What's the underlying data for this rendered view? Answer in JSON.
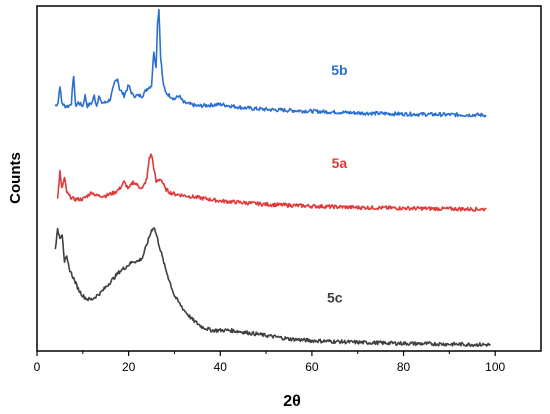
{
  "chart_data": {
    "type": "line",
    "xlabel": "2θ",
    "ylabel": "Counts",
    "xlim": [
      0,
      110
    ],
    "ylim": [
      0,
      100
    ],
    "xticks": [
      0,
      20,
      40,
      60,
      80,
      100
    ],
    "yticks": [],
    "grid": false,
    "legend": "none",
    "series": [
      {
        "name": "5b",
        "color": "#2b6fd1",
        "label_anchor": [
          66,
          80
        ],
        "points": [
          [
            4,
            71
          ],
          [
            4.6,
            72
          ],
          [
            5,
            77
          ],
          [
            5.4,
            72
          ],
          [
            6,
            71
          ],
          [
            7,
            71
          ],
          [
            7.5,
            72
          ],
          [
            8,
            80
          ],
          [
            8.4,
            71
          ],
          [
            9,
            72
          ],
          [
            10,
            71
          ],
          [
            10.5,
            74
          ],
          [
            11,
            71
          ],
          [
            12,
            72
          ],
          [
            12.5,
            74
          ],
          [
            13,
            71
          ],
          [
            13.5,
            74
          ],
          [
            14,
            72
          ],
          [
            15,
            72
          ],
          [
            16,
            73
          ],
          [
            17,
            78
          ],
          [
            17.6,
            79
          ],
          [
            18,
            76
          ],
          [
            19,
            74
          ],
          [
            20,
            77
          ],
          [
            20.6,
            75
          ],
          [
            21,
            74
          ],
          [
            22,
            74
          ],
          [
            23,
            74
          ],
          [
            24,
            76
          ],
          [
            25,
            77
          ],
          [
            25.5,
            87
          ],
          [
            26,
            82
          ],
          [
            26.3,
            95
          ],
          [
            26.6,
            99
          ],
          [
            27,
            85
          ],
          [
            27.5,
            78
          ],
          [
            28,
            75
          ],
          [
            29,
            74
          ],
          [
            30,
            73
          ],
          [
            31,
            74
          ],
          [
            32,
            72
          ],
          [
            35,
            71
          ],
          [
            40,
            71.5
          ],
          [
            45,
            70.5
          ],
          [
            50,
            70
          ],
          [
            60,
            69.5
          ],
          [
            70,
            69
          ],
          [
            80,
            68.7
          ],
          [
            90,
            68.5
          ],
          [
            98,
            68.4
          ]
        ]
      },
      {
        "name": "5a",
        "color": "#e03a3a",
        "label_anchor": [
          66,
          53
        ],
        "points": [
          [
            4.5,
            44
          ],
          [
            5,
            52
          ],
          [
            5.4,
            47
          ],
          [
            6,
            50
          ],
          [
            6.5,
            46
          ],
          [
            7,
            45
          ],
          [
            8,
            44
          ],
          [
            10,
            44
          ],
          [
            11,
            45
          ],
          [
            12,
            46
          ],
          [
            13,
            45
          ],
          [
            15,
            45
          ],
          [
            17,
            46
          ],
          [
            18,
            47
          ],
          [
            19,
            49
          ],
          [
            20,
            47
          ],
          [
            21,
            49
          ],
          [
            22,
            48
          ],
          [
            23,
            47
          ],
          [
            24,
            50
          ],
          [
            24.5,
            56
          ],
          [
            25,
            57
          ],
          [
            25.5,
            53
          ],
          [
            26,
            49
          ],
          [
            27,
            50
          ],
          [
            28,
            47
          ],
          [
            29,
            46
          ],
          [
            30,
            45.5
          ],
          [
            35,
            44.5
          ],
          [
            40,
            43.5
          ],
          [
            45,
            43
          ],
          [
            50,
            42.5
          ],
          [
            60,
            42
          ],
          [
            70,
            41.6
          ],
          [
            80,
            41.4
          ],
          [
            90,
            41.2
          ],
          [
            98,
            41.1
          ]
        ]
      },
      {
        "name": "5c",
        "color": "#404040",
        "label_anchor": [
          65,
          14
        ],
        "points": [
          [
            4,
            30
          ],
          [
            4.5,
            35
          ],
          [
            5,
            33
          ],
          [
            5.5,
            34
          ],
          [
            6,
            26
          ],
          [
            6.5,
            27
          ],
          [
            7,
            24
          ],
          [
            8,
            21
          ],
          [
            9,
            18
          ],
          [
            10,
            16
          ],
          [
            11,
            15
          ],
          [
            12,
            15
          ],
          [
            13,
            16
          ],
          [
            14,
            17
          ],
          [
            16,
            20
          ],
          [
            18,
            23
          ],
          [
            20,
            25
          ],
          [
            21,
            26
          ],
          [
            22,
            26
          ],
          [
            23,
            27
          ],
          [
            24,
            31
          ],
          [
            25,
            35
          ],
          [
            25.5,
            36
          ],
          [
            26,
            34
          ],
          [
            27,
            29
          ],
          [
            28,
            24
          ],
          [
            29,
            20
          ],
          [
            30,
            16
          ],
          [
            32,
            12
          ],
          [
            34,
            9
          ],
          [
            36,
            7
          ],
          [
            38,
            6
          ],
          [
            40,
            6
          ],
          [
            42,
            6
          ],
          [
            45,
            5.5
          ],
          [
            50,
            4.5
          ],
          [
            55,
            3.5
          ],
          [
            60,
            3
          ],
          [
            70,
            2.5
          ],
          [
            80,
            2.2
          ],
          [
            90,
            2
          ],
          [
            99,
            1.8
          ]
        ]
      }
    ]
  }
}
